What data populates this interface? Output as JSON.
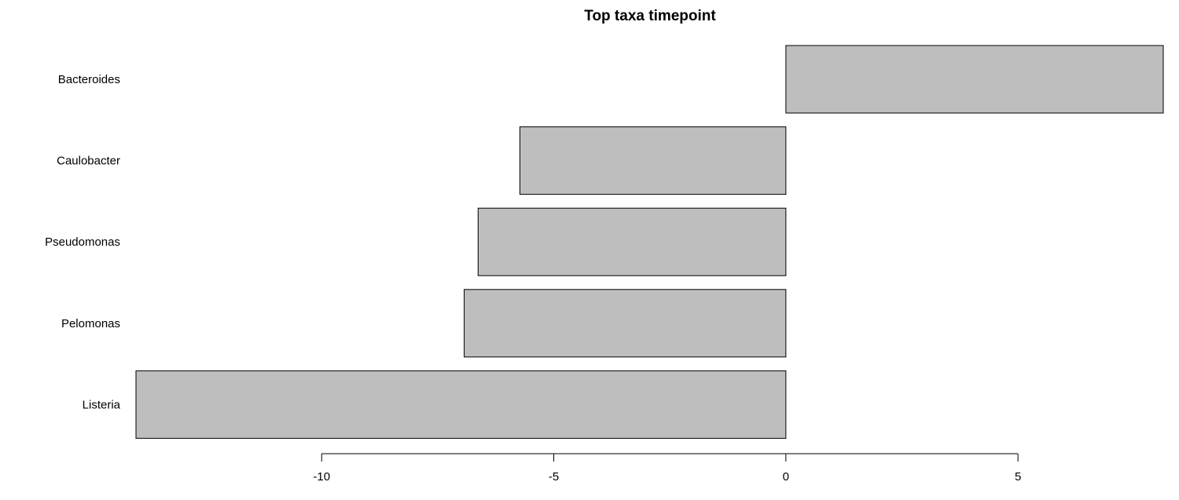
{
  "chart_data": {
    "type": "bar",
    "orientation": "horizontal",
    "title": "Top taxa timepoint",
    "xlabel": "",
    "ylabel": "",
    "categories": [
      "Bacteroides",
      "Caulobacter",
      "Pseudomonas",
      "Pelomonas",
      "Listeria"
    ],
    "values": [
      8.13,
      -5.73,
      -6.63,
      -6.93,
      -14.0
    ],
    "xticks": [
      -10,
      -5,
      0,
      5
    ],
    "xtick_labels": [
      "-10",
      "-5",
      "0",
      "5"
    ],
    "xlim": [
      -14.0,
      8.13
    ],
    "grid": false,
    "legend": "none",
    "bar_color": "#bebebe",
    "edge_color": "#000000"
  }
}
